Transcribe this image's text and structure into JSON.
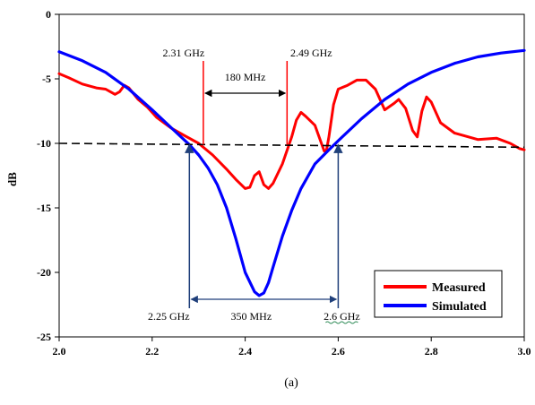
{
  "chart_data": {
    "type": "line",
    "title": "",
    "xlabel": "",
    "ylabel": "dB",
    "xlim": [
      2.0,
      3.0
    ],
    "ylim": [
      -25,
      0
    ],
    "x_ticks": [
      "2.0",
      "2.2",
      "2.4",
      "2.6",
      "2.8",
      "3.0"
    ],
    "y_ticks": [
      "0",
      "-5",
      "-10",
      "-15",
      "-20",
      "-25"
    ],
    "grid": false,
    "legend_position": "bottom-right",
    "series": [
      {
        "name": "Measured",
        "color": "#ff0000",
        "x": [
          2.0,
          2.02,
          2.05,
          2.08,
          2.1,
          2.12,
          2.13,
          2.14,
          2.15,
          2.17,
          2.19,
          2.21,
          2.24,
          2.27,
          2.3,
          2.33,
          2.36,
          2.38,
          2.4,
          2.41,
          2.42,
          2.43,
          2.44,
          2.45,
          2.46,
          2.48,
          2.5,
          2.51,
          2.52,
          2.53,
          2.55,
          2.56,
          2.57,
          2.575,
          2.58,
          2.59,
          2.6,
          2.62,
          2.64,
          2.66,
          2.68,
          2.7,
          2.72,
          2.73,
          2.745,
          2.76,
          2.77,
          2.78,
          2.79,
          2.8,
          2.82,
          2.85,
          2.9,
          2.94,
          2.97,
          2.99,
          3.0
        ],
        "y": [
          -4.6,
          -4.9,
          -5.4,
          -5.7,
          -5.8,
          -6.2,
          -6.0,
          -5.5,
          -5.7,
          -6.6,
          -7.2,
          -8.0,
          -8.8,
          -9.4,
          -10.0,
          -10.9,
          -12.0,
          -12.8,
          -13.5,
          -13.4,
          -12.5,
          -12.2,
          -13.2,
          -13.5,
          -13.1,
          -11.6,
          -9.5,
          -8.2,
          -7.6,
          -7.9,
          -8.6,
          -9.6,
          -10.6,
          -10.5,
          -9.5,
          -7.0,
          -5.8,
          -5.5,
          -5.1,
          -5.1,
          -5.8,
          -7.4,
          -6.9,
          -6.6,
          -7.3,
          -9.0,
          -9.5,
          -7.5,
          -6.4,
          -6.8,
          -8.4,
          -9.2,
          -9.7,
          -9.6,
          -10.0,
          -10.4,
          -10.5
        ]
      },
      {
        "name": "Simulated",
        "color": "#0000ff",
        "x": [
          2.0,
          2.05,
          2.1,
          2.15,
          2.2,
          2.25,
          2.28,
          2.3,
          2.32,
          2.34,
          2.36,
          2.38,
          2.4,
          2.42,
          2.43,
          2.44,
          2.45,
          2.46,
          2.48,
          2.5,
          2.52,
          2.55,
          2.58,
          2.6,
          2.65,
          2.7,
          2.75,
          2.8,
          2.85,
          2.9,
          2.95,
          3.0
        ],
        "y": [
          -2.9,
          -3.6,
          -4.5,
          -5.8,
          -7.4,
          -9.1,
          -10.1,
          -10.9,
          -11.9,
          -13.2,
          -15.0,
          -17.4,
          -20.0,
          -21.5,
          -21.8,
          -21.6,
          -20.8,
          -19.6,
          -17.2,
          -15.2,
          -13.5,
          -11.6,
          -10.5,
          -9.8,
          -8.1,
          -6.6,
          -5.4,
          -4.5,
          -3.8,
          -3.3,
          -3.0,
          -2.8
        ]
      }
    ],
    "reference_line": {
      "y": -10,
      "style": "dashed",
      "color": "#000000"
    },
    "annotations": {
      "top_left_freq": {
        "text": "2.31 GHz",
        "x": 2.31
      },
      "top_right_freq": {
        "text": "2.49 GHz",
        "x": 2.49
      },
      "top_bandwidth": {
        "text": "180 MHz"
      },
      "bottom_left_freq": {
        "text": "2.25 GHz",
        "x": 2.28
      },
      "bottom_right_freq": {
        "text": "2.6  GHz",
        "x": 2.6
      },
      "bottom_bandwidth": {
        "text": "350 MHz"
      }
    },
    "caption": "(a)"
  }
}
